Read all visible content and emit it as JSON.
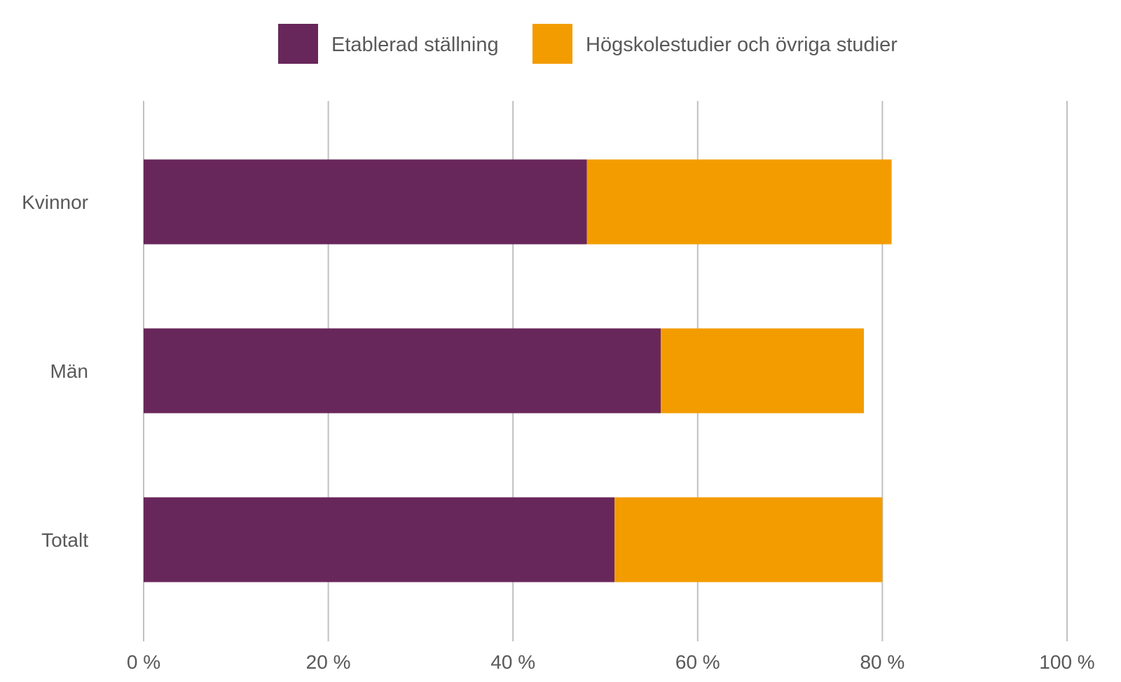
{
  "chart_data": {
    "type": "bar",
    "orientation": "horizontal",
    "stacked": true,
    "title": "",
    "xlabel": "",
    "ylabel": "",
    "categories": [
      "Kvinnor",
      "Män",
      "Totalt"
    ],
    "series": [
      {
        "name": "Etablerad ställning",
        "color": "#68275A",
        "values": [
          48,
          56,
          51
        ]
      },
      {
        "name": "Högskolestudier och övriga studier",
        "color": "#F39C00",
        "values": [
          33,
          22,
          29
        ]
      }
    ],
    "xlim": [
      0,
      100
    ],
    "xticks": [
      0,
      20,
      40,
      60,
      80,
      100
    ],
    "xtick_labels": [
      "0 %",
      "20 %",
      "40 %",
      "60 %",
      "80 %",
      "100 %"
    ],
    "grid": "vertical",
    "legend": "top"
  }
}
